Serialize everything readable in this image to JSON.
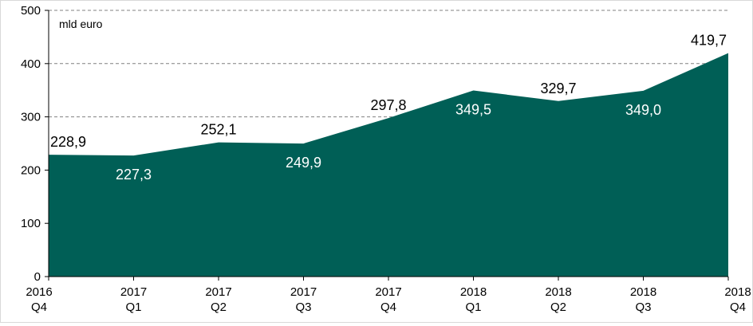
{
  "chart_data": {
    "type": "area",
    "unit_label": "mld euro",
    "categories": [
      [
        "2016",
        "Q4"
      ],
      [
        "2017",
        "Q1"
      ],
      [
        "2017",
        "Q2"
      ],
      [
        "2017",
        "Q3"
      ],
      [
        "2017",
        "Q4"
      ],
      [
        "2018",
        "Q1"
      ],
      [
        "2018",
        "Q2"
      ],
      [
        "2018",
        "Q3"
      ],
      [
        "2018",
        "Q4"
      ]
    ],
    "values": [
      228.9,
      227.3,
      252.1,
      249.9,
      297.8,
      349.5,
      329.7,
      349.0,
      419.7
    ],
    "data_labels": [
      "228,9",
      "227,3",
      "252,1",
      "249,9",
      "297,8",
      "349,5",
      "329,7",
      "349,0",
      "419,7"
    ],
    "ylim": [
      0,
      500
    ],
    "yticks": [
      0,
      100,
      200,
      300,
      400,
      500
    ],
    "grid": "horizontal dashed",
    "colors": {
      "area": "#005f56",
      "grid": "#808080",
      "axis": "#000000",
      "label_dark": "#000000",
      "label_light": "#ffffff"
    }
  }
}
